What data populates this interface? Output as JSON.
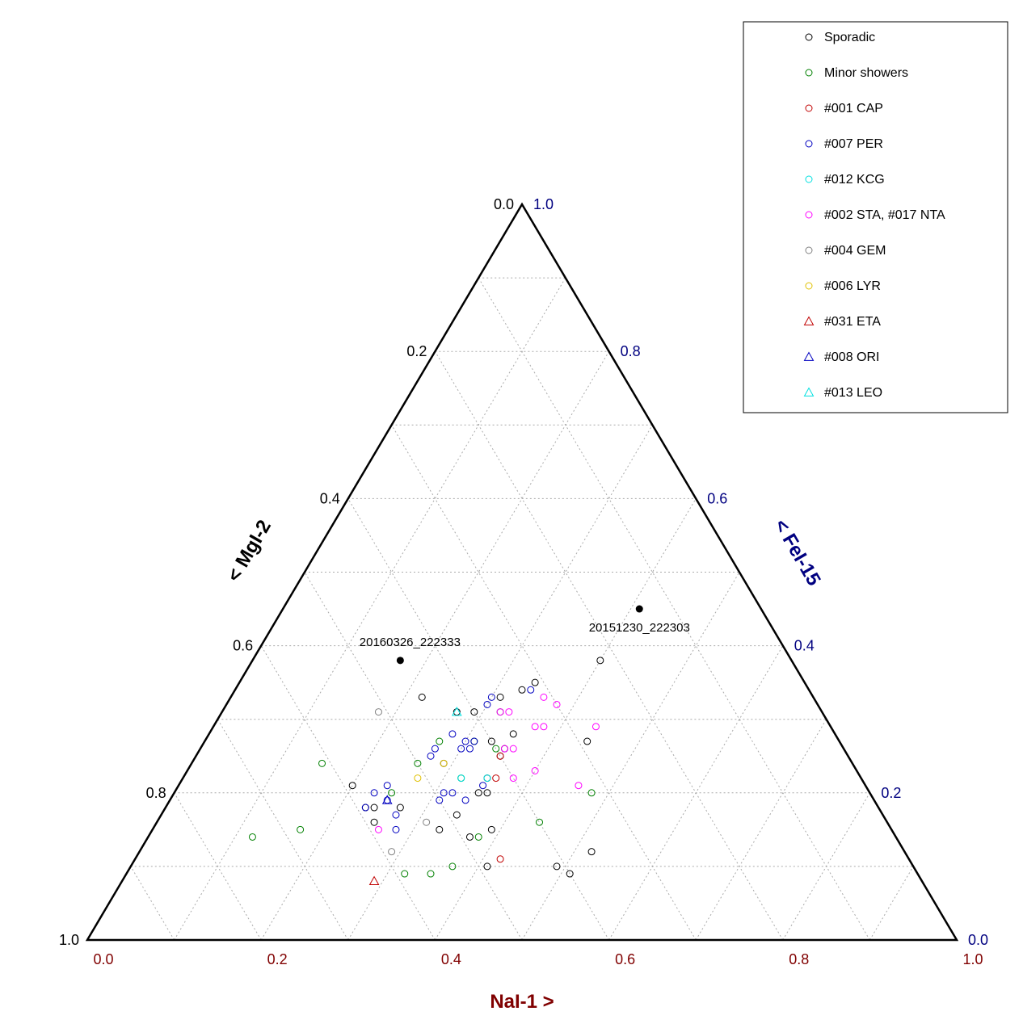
{
  "chart_data": {
    "type": "scatter",
    "subtype": "ternary",
    "axes": {
      "bottom": {
        "label": "NaI-1 >",
        "color": "#800000",
        "ticks": [
          "0.0",
          "0.2",
          "0.4",
          "0.6",
          "0.8",
          "1.0"
        ]
      },
      "left": {
        "label": "< MgI-2",
        "color": "#000000",
        "ticks": [
          "0.0",
          "0.2",
          "0.4",
          "0.6",
          "0.8",
          "1.0"
        ]
      },
      "right": {
        "label": "< FeI-15",
        "color": "#000080",
        "ticks": [
          "1.0",
          "0.8",
          "0.6",
          "0.4",
          "0.2",
          "0.0"
        ]
      }
    },
    "grid": true,
    "legend_position": "top-right",
    "legend": [
      {
        "name": "Sporadic",
        "color": "#000000",
        "marker": "circle"
      },
      {
        "name": "Minor showers",
        "color": "#008000",
        "marker": "circle"
      },
      {
        "name": "#001 CAP",
        "color": "#c00000",
        "marker": "circle"
      },
      {
        "name": "#007 PER",
        "color": "#0000c0",
        "marker": "circle"
      },
      {
        "name": "#012 KCG",
        "color": "#00e0e0",
        "marker": "circle"
      },
      {
        "name": "#002 STA, #017 NTA",
        "color": "#ff00ff",
        "marker": "circle"
      },
      {
        "name": "#004 GEM",
        "color": "#808080",
        "marker": "circle"
      },
      {
        "name": "#006 LYR",
        "color": "#e0c000",
        "marker": "circle"
      },
      {
        "name": "#031 ETA",
        "color": "#c00000",
        "marker": "triangle"
      },
      {
        "name": "#008 ORI",
        "color": "#0000c0",
        "marker": "triangle"
      },
      {
        "name": "#013 LEO",
        "color": "#00e0e0",
        "marker": "triangle"
      }
    ],
    "annotations": [
      {
        "label": "20160326_222333",
        "nai": 0.17,
        "mgi": 0.45,
        "fei": 0.38
      },
      {
        "label": "20151230_222303",
        "nai": 0.41,
        "mgi": 0.14,
        "fei": 0.45
      }
    ],
    "series": [
      {
        "name": "Sporadic",
        "points": [
          [
            0.34,
            0.31,
            0.35
          ],
          [
            0.31,
            0.36,
            0.33
          ],
          [
            0.33,
            0.33,
            0.34
          ],
          [
            0.4,
            0.22,
            0.38
          ],
          [
            0.22,
            0.45,
            0.33
          ],
          [
            0.44,
            0.29,
            0.27
          ],
          [
            0.29,
            0.47,
            0.24
          ],
          [
            0.35,
            0.37,
            0.28
          ],
          [
            0.33,
            0.4,
            0.27
          ],
          [
            0.35,
            0.39,
            0.26
          ],
          [
            0.35,
            0.4,
            0.25
          ],
          [
            0.29,
            0.4,
            0.31
          ],
          [
            0.24,
            0.58,
            0.18
          ],
          [
            0.23,
            0.59,
            0.18
          ],
          [
            0.27,
            0.55,
            0.18
          ],
          [
            0.35,
            0.45,
            0.2
          ],
          [
            0.35,
            0.43,
            0.22
          ],
          [
            0.34,
            0.49,
            0.17
          ],
          [
            0.36,
            0.44,
            0.2
          ],
          [
            0.25,
            0.59,
            0.16
          ],
          [
            0.33,
            0.52,
            0.15
          ],
          [
            0.39,
            0.46,
            0.15
          ],
          [
            0.37,
            0.49,
            0.14
          ],
          [
            0.52,
            0.36,
            0.12
          ],
          [
            0.49,
            0.41,
            0.1
          ],
          [
            0.41,
            0.49,
            0.1
          ],
          [
            0.51,
            0.4,
            0.09
          ],
          [
            0.2,
            0.59,
            0.21
          ],
          [
            0.27,
            0.42,
            0.31
          ]
        ]
      },
      {
        "name": "Minor showers",
        "points": [
          [
            0.15,
            0.61,
            0.24
          ],
          [
            0.12,
            0.74,
            0.14
          ],
          [
            0.27,
            0.46,
            0.27
          ],
          [
            0.26,
            0.5,
            0.24
          ],
          [
            0.25,
            0.55,
            0.2
          ],
          [
            0.17,
            0.68,
            0.15
          ],
          [
            0.32,
            0.37,
            0.31
          ],
          [
            0.34,
            0.4,
            0.26
          ],
          [
            0.32,
            0.46,
            0.22
          ],
          [
            0.32,
            0.59,
            0.09
          ],
          [
            0.35,
            0.56,
            0.09
          ],
          [
            0.37,
            0.53,
            0.1
          ],
          [
            0.38,
            0.48,
            0.14
          ],
          [
            0.48,
            0.32,
            0.2
          ],
          [
            0.44,
            0.4,
            0.16
          ],
          [
            0.31,
            0.42,
            0.27
          ]
        ]
      },
      {
        "name": "#001 CAP",
        "points": [
          [
            0.42,
            0.47,
            0.11
          ],
          [
            0.35,
            0.4,
            0.25
          ],
          [
            0.36,
            0.42,
            0.22
          ]
        ]
      },
      {
        "name": "#007 PER",
        "points": [
          [
            0.34,
            0.32,
            0.34
          ],
          [
            0.28,
            0.44,
            0.28
          ],
          [
            0.31,
            0.43,
            0.26
          ],
          [
            0.31,
            0.42,
            0.27
          ],
          [
            0.27,
            0.48,
            0.25
          ],
          [
            0.27,
            0.47,
            0.26
          ],
          [
            0.3,
            0.43,
            0.27
          ],
          [
            0.3,
            0.44,
            0.26
          ],
          [
            0.23,
            0.57,
            0.2
          ],
          [
            0.24,
            0.55,
            0.21
          ],
          [
            0.25,
            0.56,
            0.19
          ],
          [
            0.27,
            0.56,
            0.17
          ],
          [
            0.32,
            0.48,
            0.2
          ],
          [
            0.31,
            0.5,
            0.19
          ],
          [
            0.31,
            0.49,
            0.2
          ],
          [
            0.34,
            0.47,
            0.19
          ],
          [
            0.35,
            0.44,
            0.21
          ],
          [
            0.23,
            0.59,
            0.18
          ],
          [
            0.28,
            0.57,
            0.15
          ],
          [
            0.3,
            0.38,
            0.32
          ],
          [
            0.3,
            0.37,
            0.33
          ]
        ]
      },
      {
        "name": "#012 KCG",
        "points": [
          [
            0.32,
            0.46,
            0.22
          ],
          [
            0.35,
            0.43,
            0.22
          ]
        ]
      },
      {
        "name": "#002 STA, #017 NTA",
        "points": [
          [
            0.36,
            0.31,
            0.33
          ],
          [
            0.38,
            0.3,
            0.32
          ],
          [
            0.32,
            0.37,
            0.31
          ],
          [
            0.33,
            0.36,
            0.31
          ],
          [
            0.37,
            0.34,
            0.29
          ],
          [
            0.36,
            0.38,
            0.26
          ],
          [
            0.35,
            0.39,
            0.26
          ],
          [
            0.4,
            0.37,
            0.23
          ],
          [
            0.44,
            0.27,
            0.29
          ],
          [
            0.46,
            0.33,
            0.21
          ],
          [
            0.26,
            0.59,
            0.15
          ],
          [
            0.38,
            0.33,
            0.29
          ],
          [
            0.38,
            0.4,
            0.22
          ]
        ]
      },
      {
        "name": "#004 GEM",
        "points": [
          [
            0.18,
            0.51,
            0.31
          ],
          [
            0.31,
            0.53,
            0.16
          ],
          [
            0.29,
            0.59,
            0.12
          ]
        ]
      },
      {
        "name": "#006 LYR",
        "points": [
          [
            0.29,
            0.47,
            0.24
          ],
          [
            0.27,
            0.51,
            0.22
          ]
        ]
      },
      {
        "name": "#031 ETA",
        "points": [
          [
            0.29,
            0.63,
            0.08
          ]
        ]
      },
      {
        "name": "#008 ORI",
        "points": [
          [
            0.25,
            0.56,
            0.19
          ]
        ]
      },
      {
        "name": "#013 LEO",
        "points": [
          [
            0.27,
            0.42,
            0.31
          ]
        ]
      }
    ]
  }
}
